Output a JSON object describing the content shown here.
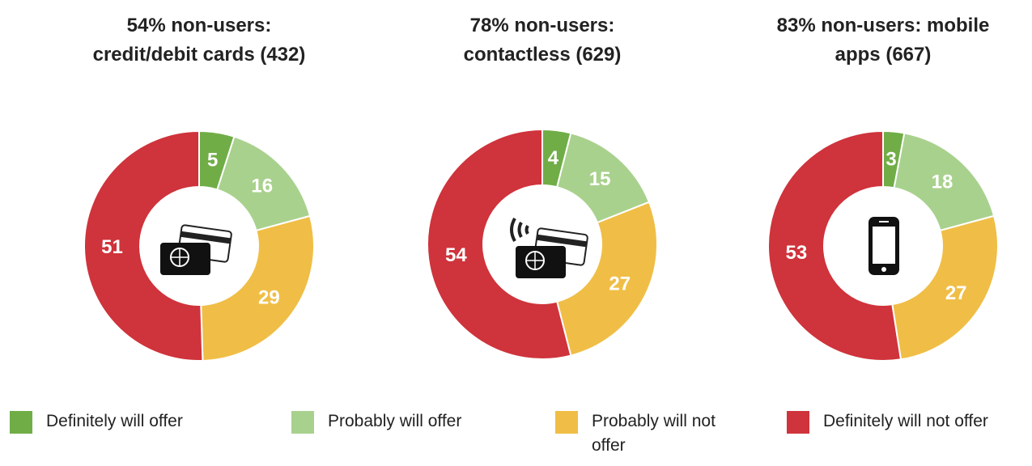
{
  "chart_data": [
    {
      "type": "pie",
      "title": "54% non-users: credit/debit cards (432)",
      "categories": [
        "Definitely will offer",
        "Probably will offer",
        "Probably will not offer",
        "Definitely will not offer"
      ],
      "values": [
        5,
        16,
        29,
        51
      ],
      "colors": [
        "#70ad47",
        "#a9d18e",
        "#f0be46",
        "#cf333b"
      ],
      "donut": true
    },
    {
      "type": "pie",
      "title": "78% non-users: contactless (629)",
      "categories": [
        "Definitely will offer",
        "Probably will offer",
        "Probably will not offer",
        "Definitely will not offer"
      ],
      "values": [
        4,
        15,
        27,
        54
      ],
      "colors": [
        "#70ad47",
        "#a9d18e",
        "#f0be46",
        "#cf333b"
      ],
      "donut": true
    },
    {
      "type": "pie",
      "title": "83% non-users: mobile apps (667)",
      "categories": [
        "Definitely will offer",
        "Probably will offer",
        "Probably will not offer",
        "Definitely will not offer"
      ],
      "values": [
        3,
        18,
        27,
        53
      ],
      "colors": [
        "#70ad47",
        "#a9d18e",
        "#f0be46",
        "#cf333b"
      ],
      "donut": true
    }
  ]
}
